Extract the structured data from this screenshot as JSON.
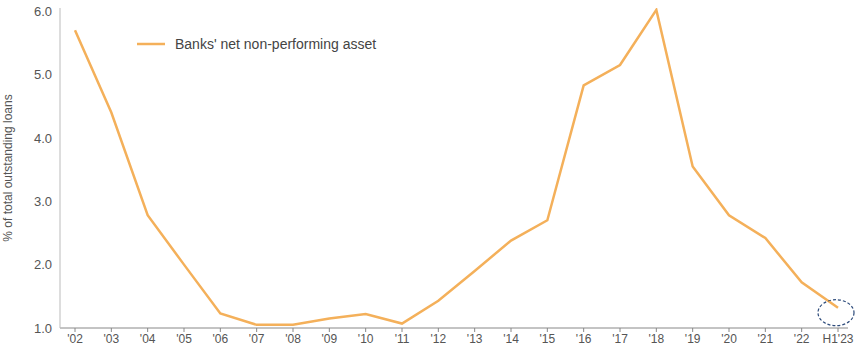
{
  "chart_data": {
    "type": "line",
    "y_label": "% of total outstanding loans",
    "categories": [
      "'02",
      "'03",
      "'04",
      "'05",
      "'06",
      "'07",
      "'08",
      "'09",
      "'10",
      "'11",
      "'12",
      "'13",
      "'14",
      "'15",
      "'16",
      "'17",
      "'18",
      "'19",
      "'20",
      "'21",
      "'22",
      "H1'23"
    ],
    "series": [
      {
        "name": "Banks' net non-performing asset",
        "color": "#f4b05a",
        "values": [
          5.7,
          4.4,
          2.78,
          2.0,
          1.23,
          1.05,
          1.05,
          1.15,
          1.22,
          1.07,
          1.43,
          1.9,
          2.38,
          2.7,
          4.83,
          5.15,
          6.02,
          3.55,
          2.78,
          2.42,
          1.72,
          1.32
        ]
      }
    ],
    "ylim": [
      1,
      6.05
    ],
    "yticks": [
      {
        "value": 1,
        "label": "1.0"
      },
      {
        "value": 2,
        "label": "2.0"
      },
      {
        "value": 3,
        "label": "3.0"
      },
      {
        "value": 4,
        "label": "4.0"
      },
      {
        "value": 5,
        "label": "5.0"
      },
      {
        "value": 6,
        "label": "6.0"
      }
    ],
    "grid": false,
    "legend": "upper left"
  }
}
